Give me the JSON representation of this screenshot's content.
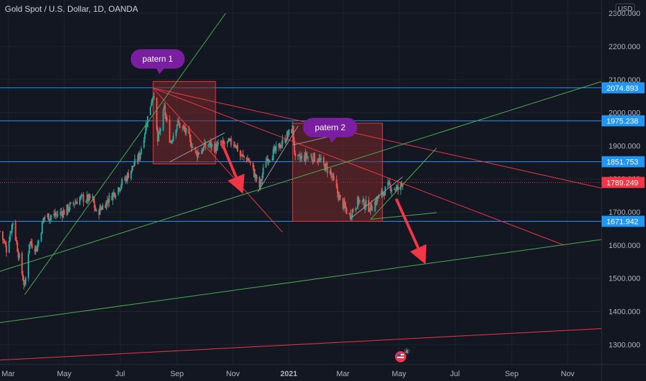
{
  "header": {
    "title": "Gold Spot / U.S. Dollar, 1D, OANDA",
    "currency_button": "USD"
  },
  "events": {
    "count": "4"
  },
  "chart_data": {
    "type": "candlestick",
    "title": "Gold Spot / U.S. Dollar, 1D, OANDA",
    "x_ticks": [
      {
        "label": "Mar",
        "date": "2020-03-01"
      },
      {
        "label": "May",
        "date": "2020-05-01"
      },
      {
        "label": "Jul",
        "date": "2020-07-01"
      },
      {
        "label": "Sep",
        "date": "2020-09-01"
      },
      {
        "label": "Nov",
        "date": "2020-11-01"
      },
      {
        "label": "2021",
        "date": "2021-01-01"
      },
      {
        "label": "Mar",
        "date": "2021-03-01"
      },
      {
        "label": "May",
        "date": "2021-05-01"
      },
      {
        "label": "Jul",
        "date": "2021-07-01"
      },
      {
        "label": "Sep",
        "date": "2021-09-01"
      },
      {
        "label": "Nov",
        "date": "2021-11-01"
      }
    ],
    "y_ticks": [
      1300,
      1400,
      1500,
      1600,
      1700,
      1800,
      1900,
      2000,
      2100,
      2200,
      2300
    ],
    "ylim": [
      1240,
      2340
    ],
    "xlim": [
      "2020-02-21",
      "2021-12-08"
    ],
    "colors": {
      "up": "#26a69a",
      "down": "#ef5350",
      "blue_level": "#2962ff",
      "hline": "#2196f3",
      "red_line": "#f23645",
      "green_line": "#4caf50",
      "gray_line": "#9598a1",
      "box_fill": "#7a2a2a",
      "box_border": "#f23645",
      "callout": "#7b1fa2"
    },
    "price_levels": [
      {
        "value": 2074.893,
        "label": "2074.893",
        "color": "#2196f3"
      },
      {
        "value": 1975.238,
        "label": "1975.238",
        "color": "#2196f3"
      },
      {
        "value": 1851.753,
        "label": "1851.753",
        "color": "#2196f3"
      },
      {
        "value": 1671.942,
        "label": "1671.942",
        "color": "#2196f3"
      },
      {
        "value": 1789.249,
        "label": "1789.249",
        "color": "#f23645",
        "style": "dotted",
        "current": true
      }
    ],
    "annotations": [
      {
        "type": "callout",
        "text": "patern 1",
        "date": "2020-08-11",
        "price": 2162
      },
      {
        "type": "callout",
        "text": "patern 2",
        "date": "2021-02-15",
        "price": 1955
      },
      {
        "type": "rect",
        "from_date": "2020-08-06",
        "to_date": "2020-10-13",
        "top": 2094,
        "bottom": 1845
      },
      {
        "type": "rect",
        "from_date": "2021-01-05",
        "to_date": "2021-04-13",
        "top": 1968,
        "bottom": 1672
      },
      {
        "type": "arrow",
        "from_date": "2020-10-19",
        "from_price": 1915,
        "to_date": "2020-11-12",
        "to_price": 1755
      },
      {
        "type": "arrow",
        "from_date": "2021-04-28",
        "from_price": 1740,
        "to_date": "2021-05-30",
        "to_price": 1542
      }
    ],
    "trendlines": [
      {
        "color": "#f23645",
        "from_date": "2020-08-06",
        "from_price": 2074,
        "to_date": "2021-12-08",
        "to_price": 1772
      },
      {
        "color": "#f23645",
        "from_date": "2020-08-06",
        "from_price": 2074,
        "to_date": "2021-10-28",
        "to_price": 1600
      },
      {
        "color": "#f23645",
        "from_date": "2020-08-06",
        "from_price": 2074,
        "to_date": "2020-12-25",
        "to_price": 1639
      },
      {
        "color": "#f23645",
        "from_date": "2020-02-21",
        "from_price": 1253,
        "to_date": "2021-12-08",
        "to_price": 1348
      },
      {
        "color": "#4caf50",
        "from_date": "2020-03-19",
        "from_price": 1451,
        "to_date": "2020-10-24",
        "to_price": 2300
      },
      {
        "color": "#4caf50",
        "from_date": "2020-02-21",
        "from_price": 1521,
        "to_date": "2021-12-08",
        "to_price": 2094
      },
      {
        "color": "#4caf50",
        "from_date": "2020-02-21",
        "from_price": 1366,
        "to_date": "2021-12-08",
        "to_price": 1617
      },
      {
        "color": "#4caf50",
        "from_date": "2021-03-31",
        "from_price": 1678,
        "to_date": "2021-06-11",
        "to_price": 1698
      },
      {
        "color": "#4caf50",
        "from_date": "2021-03-31",
        "from_price": 1678,
        "to_date": "2021-06-11",
        "to_price": 1893
      },
      {
        "color": "#9598a1",
        "from_date": "2020-08-24",
        "from_price": 1851,
        "to_date": "2020-10-23",
        "to_price": 1939
      },
      {
        "color": "#9598a1",
        "from_date": "2021-01-05",
        "from_price": 1902,
        "to_date": "2021-02-24",
        "to_price": 1934
      },
      {
        "color": "#9598a1",
        "from_date": "2020-11-28",
        "from_price": 1760,
        "to_date": "2021-01-11",
        "to_price": 1960
      },
      {
        "color": "#9598a1",
        "from_date": "2021-03-09",
        "from_price": 1680,
        "to_date": "2021-05-05",
        "to_price": 1806
      }
    ],
    "price_path": [
      [
        "2020-02-21",
        1642
      ],
      [
        "2020-02-28",
        1588
      ],
      [
        "2020-03-06",
        1672
      ],
      [
        "2020-03-12",
        1575
      ],
      [
        "2020-03-16",
        1515
      ],
      [
        "2020-03-19",
        1472
      ],
      [
        "2020-03-24",
        1610
      ],
      [
        "2020-04-01",
        1590
      ],
      [
        "2020-04-09",
        1685
      ],
      [
        "2020-04-21",
        1690
      ],
      [
        "2020-05-01",
        1701
      ],
      [
        "2020-05-18",
        1742
      ],
      [
        "2020-06-01",
        1738
      ],
      [
        "2020-06-05",
        1695
      ],
      [
        "2020-06-22",
        1750
      ],
      [
        "2020-07-08",
        1805
      ],
      [
        "2020-07-22",
        1870
      ],
      [
        "2020-07-28",
        1945
      ],
      [
        "2020-08-06",
        2064
      ],
      [
        "2020-08-11",
        1912
      ],
      [
        "2020-08-18",
        2010
      ],
      [
        "2020-08-25",
        1910
      ],
      [
        "2020-09-01",
        1970
      ],
      [
        "2020-09-10",
        1945
      ],
      [
        "2020-09-22",
        1875
      ],
      [
        "2020-10-05",
        1905
      ],
      [
        "2020-10-13",
        1895
      ],
      [
        "2020-10-23",
        1905
      ],
      [
        "2020-11-03",
        1910
      ],
      [
        "2020-11-09",
        1870
      ],
      [
        "2020-11-18",
        1858
      ],
      [
        "2020-11-30",
        1775
      ],
      [
        "2020-12-07",
        1860
      ],
      [
        "2020-12-18",
        1885
      ],
      [
        "2021-01-05",
        1952
      ],
      [
        "2021-01-08",
        1855
      ],
      [
        "2021-01-20",
        1868
      ],
      [
        "2021-02-01",
        1862
      ],
      [
        "2021-02-15",
        1820
      ],
      [
        "2021-02-26",
        1735
      ],
      [
        "2021-03-08",
        1690
      ],
      [
        "2021-03-18",
        1735
      ],
      [
        "2021-03-31",
        1712
      ],
      [
        "2021-04-09",
        1745
      ],
      [
        "2021-04-20",
        1778
      ],
      [
        "2021-04-30",
        1768
      ],
      [
        "2021-05-05",
        1789
      ]
    ]
  }
}
